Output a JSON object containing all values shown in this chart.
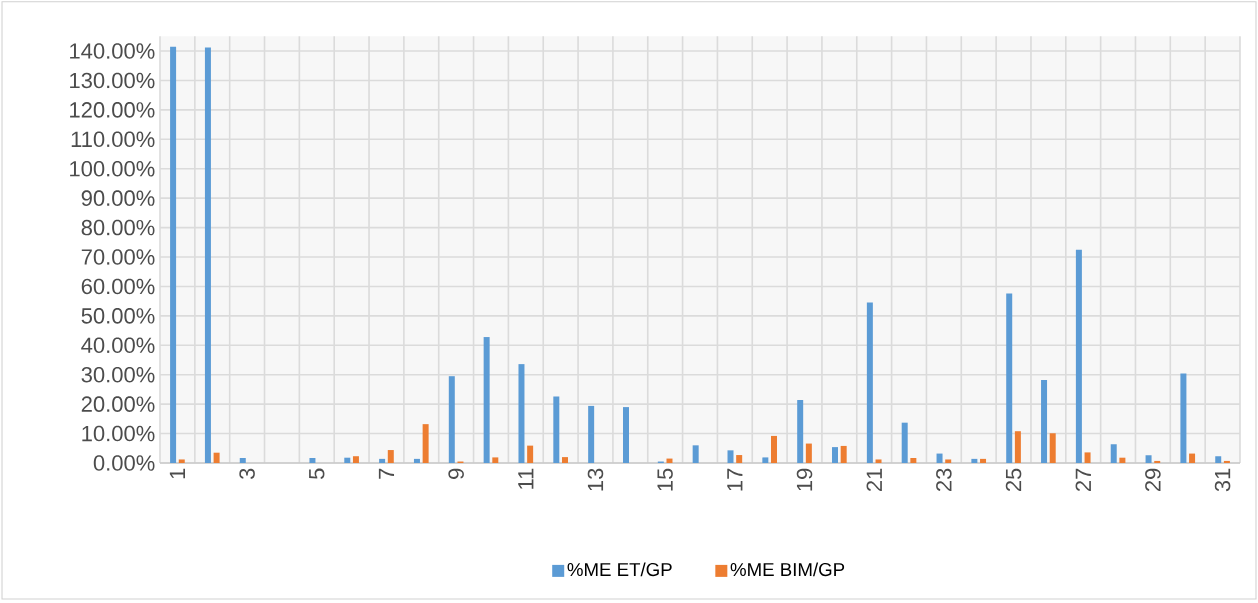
{
  "chart_data": {
    "type": "bar",
    "categories": [
      "1",
      null,
      "3",
      null,
      "5",
      null,
      "7",
      null,
      "9",
      null,
      "11",
      null,
      "13",
      null,
      "15",
      null,
      "17",
      null,
      "19",
      null,
      "21",
      null,
      "23",
      null,
      "25",
      null,
      "27",
      null,
      "29",
      null,
      "31"
    ],
    "series": [
      {
        "name": "%ME ET/GP",
        "color": "#5b9bd5",
        "values": [
          141.5,
          141.2,
          1.7,
          null,
          1.7,
          1.8,
          1.4,
          1.4,
          29.5,
          42.8,
          33.6,
          22.6,
          19.4,
          19.0,
          0.5,
          6.0,
          4.3,
          1.9,
          21.4,
          5.4,
          54.5,
          13.7,
          3.2,
          1.4,
          57.6,
          28.2,
          72.5,
          6.4,
          2.6,
          30.4,
          2.3
        ]
      },
      {
        "name": "%ME BIM/GP",
        "color": "#ed7d31",
        "values": [
          1.2,
          3.5,
          null,
          null,
          null,
          2.3,
          4.4,
          13.2,
          0.5,
          1.9,
          5.9,
          2.0,
          null,
          null,
          1.5,
          null,
          2.7,
          9.2,
          6.6,
          5.8,
          1.2,
          1.7,
          1.2,
          1.4,
          10.8,
          10.1,
          3.6,
          1.8,
          0.7,
          3.2,
          0.7
        ]
      }
    ],
    "ylim": [
      0,
      145
    ],
    "yticks": [
      {
        "value": 0,
        "label": "0.00%"
      },
      {
        "value": 10,
        "label": "10.00%"
      },
      {
        "value": 20,
        "label": "20.00%"
      },
      {
        "value": 30,
        "label": "30.00%"
      },
      {
        "value": 40,
        "label": "40.00%"
      },
      {
        "value": 50,
        "label": "50.00%"
      },
      {
        "value": 60,
        "label": "60.00%"
      },
      {
        "value": 70,
        "label": "70.00%"
      },
      {
        "value": 80,
        "label": "80.00%"
      },
      {
        "value": 90,
        "label": "90.00%"
      },
      {
        "value": 100,
        "label": "100.00%"
      },
      {
        "value": 110,
        "label": "110.00%"
      },
      {
        "value": 120,
        "label": "120.00%"
      },
      {
        "value": 130,
        "label": "130.00%"
      },
      {
        "value": 140,
        "label": "140.00%"
      }
    ],
    "grid": true,
    "legend": "bottom"
  }
}
